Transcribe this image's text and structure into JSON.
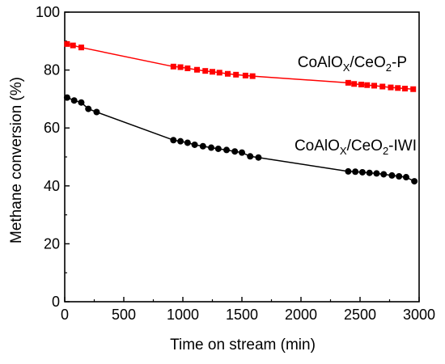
{
  "chart_data": {
    "type": "scatter",
    "xlabel": "Time on stream (min)",
    "ylabel": "Methane conversion (%)",
    "xlim": [
      0,
      3000
    ],
    "ylim": [
      0,
      100
    ],
    "xticks": [
      0,
      500,
      1000,
      1500,
      2000,
      2500,
      3000
    ],
    "yticks": [
      0,
      20,
      40,
      60,
      80,
      100
    ],
    "grid": false,
    "legend": "inline labels",
    "series": [
      {
        "label_parts": [
          {
            "text": "CoAlO",
            "sub": false
          },
          {
            "text": "X",
            "sub": true
          },
          {
            "text": "/CeO",
            "sub": false
          },
          {
            "text": "2",
            "sub": true
          },
          {
            "text": "-P",
            "sub": false
          }
        ],
        "color": "#ff0000",
        "marker": "square",
        "x": [
          20,
          70,
          140,
          920,
          980,
          1040,
          1120,
          1190,
          1250,
          1310,
          1380,
          1450,
          1530,
          1590,
          2400,
          2450,
          2510,
          2560,
          2620,
          2690,
          2760,
          2820,
          2880,
          2950
        ],
        "y": [
          89.0,
          88.5,
          87.8,
          81.2,
          81.0,
          80.6,
          80.1,
          79.7,
          79.4,
          79.1,
          78.7,
          78.4,
          78.1,
          77.9,
          75.6,
          75.2,
          75.0,
          74.8,
          74.6,
          74.3,
          74.0,
          73.8,
          73.6,
          73.4
        ]
      },
      {
        "label_parts": [
          {
            "text": "CoAlO",
            "sub": false
          },
          {
            "text": "X",
            "sub": true
          },
          {
            "text": "/CeO",
            "sub": false
          },
          {
            "text": "2",
            "sub": true
          },
          {
            "text": "-IWI",
            "sub": false
          }
        ],
        "color": "#000000",
        "marker": "circle",
        "x": [
          20,
          80,
          140,
          200,
          270,
          920,
          980,
          1040,
          1100,
          1170,
          1240,
          1300,
          1370,
          1440,
          1500,
          1570,
          1640,
          2400,
          2460,
          2520,
          2580,
          2640,
          2700,
          2770,
          2830,
          2890,
          2960
        ],
        "y": [
          70.5,
          69.5,
          68.8,
          66.6,
          65.5,
          55.8,
          55.4,
          54.9,
          54.2,
          53.7,
          53.2,
          52.8,
          52.4,
          51.9,
          51.5,
          50.2,
          49.8,
          45.0,
          44.9,
          44.7,
          44.5,
          44.3,
          44.0,
          43.6,
          43.3,
          43.0,
          41.6
        ]
      }
    ]
  }
}
